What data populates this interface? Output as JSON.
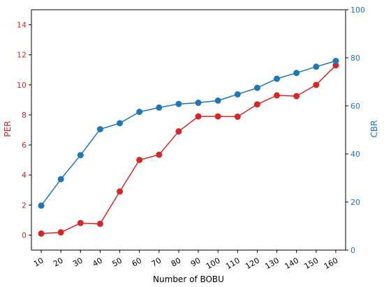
{
  "chart_data": {
    "type": "line",
    "xlabel": "Number of BOBU",
    "categories": [
      10,
      20,
      30,
      40,
      50,
      60,
      70,
      80,
      90,
      100,
      110,
      120,
      130,
      140,
      150,
      160
    ],
    "left_axis": {
      "label": "PER",
      "color": "#d62728",
      "ylim": [
        -1,
        15
      ],
      "ticks": [
        0,
        2,
        4,
        6,
        8,
        10,
        12,
        14
      ]
    },
    "right_axis": {
      "label": "CBR",
      "color": "#1f77b4",
      "ylim": [
        0,
        100
      ],
      "ticks": [
        0,
        20,
        40,
        60,
        80,
        100
      ]
    },
    "series": [
      {
        "name": "PER",
        "axis": "left",
        "color": "#d62728",
        "values": [
          0.1,
          0.18,
          0.8,
          0.75,
          2.9,
          5.0,
          5.35,
          6.9,
          7.9,
          7.9,
          7.88,
          8.7,
          9.3,
          9.25,
          10.0,
          11.3
        ]
      },
      {
        "name": "CBR",
        "axis": "right",
        "color": "#1f77b4",
        "values": [
          18.5,
          29.5,
          39.5,
          50.3,
          52.8,
          57.5,
          59.3,
          60.8,
          61.3,
          62.2,
          64.8,
          67.5,
          71.3,
          73.7,
          76.3,
          78.7
        ]
      }
    ],
    "grid": false,
    "x_tick_rotation": "30deg"
  }
}
